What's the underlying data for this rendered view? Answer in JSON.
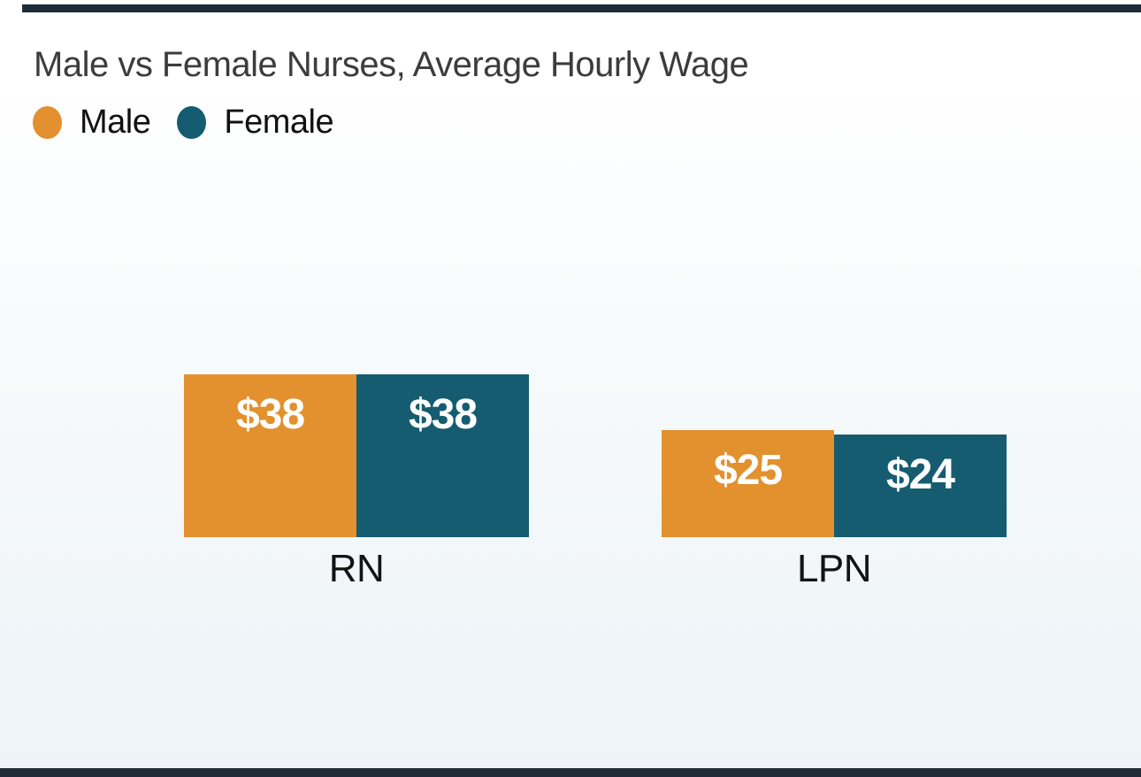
{
  "chart_data": {
    "type": "bar",
    "title": "Male vs Female Nurses, Average Hourly Wage",
    "categories": [
      "RN",
      "LPN"
    ],
    "series": [
      {
        "name": "Male",
        "color": "#e2912e",
        "values": [
          38,
          25
        ],
        "value_labels": [
          "$38",
          "$25"
        ]
      },
      {
        "name": "Female",
        "color": "#155c71",
        "values": [
          38,
          24
        ],
        "value_labels": [
          "$38",
          "$24"
        ]
      }
    ],
    "value_prefix": "$",
    "ylim": [
      0,
      38
    ],
    "grid": false,
    "axes_visible": false,
    "value_labels_inside_bars": true,
    "legend_position": "top-left",
    "orientation": "vertical"
  },
  "legend": {
    "items": [
      {
        "label": "Male",
        "color": "#e2912e"
      },
      {
        "label": "Female",
        "color": "#155c71"
      }
    ]
  },
  "colors": {
    "male_series": "#e2912e",
    "female_series": "#155c71",
    "edge_bar": "#1f2b39",
    "title_text": "#3c3c3c",
    "label_text": "#131313",
    "value_label_text": "#ffffff",
    "background_top": "#ffffff",
    "background_bottom": "#edf3f8"
  }
}
